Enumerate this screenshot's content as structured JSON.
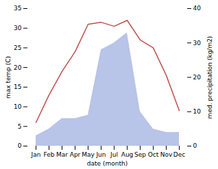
{
  "chart_data": {
    "type": "line",
    "categories": [
      "Jan",
      "Feb",
      "Mar",
      "Apr",
      "May",
      "Jun",
      "Jul",
      "Aug",
      "Sep",
      "Oct",
      "Nov",
      "Dec"
    ],
    "series": [
      {
        "type": "area",
        "axis": "y2",
        "color": "#b8c4e8",
        "values": [
          3,
          5,
          8,
          8,
          9,
          28,
          30,
          33,
          10,
          5,
          4,
          4
        ]
      },
      {
        "type": "line",
        "color": "#c0504d",
        "values": [
          6,
          13,
          19,
          24,
          31,
          31.5,
          30.5,
          32,
          27,
          25,
          18,
          9
        ]
      }
    ],
    "xlabel": "date (month)",
    "ylabel": "max temp (C)",
    "y2label": "med. precipitation (kg/m2)",
    "ylim": [
      0,
      35
    ],
    "yticks": [
      0,
      5,
      10,
      15,
      20,
      25,
      30,
      35
    ],
    "y2lim": [
      0,
      40
    ],
    "y2ticks": [
      0,
      10,
      20,
      30,
      40
    ],
    "grid": false
  }
}
